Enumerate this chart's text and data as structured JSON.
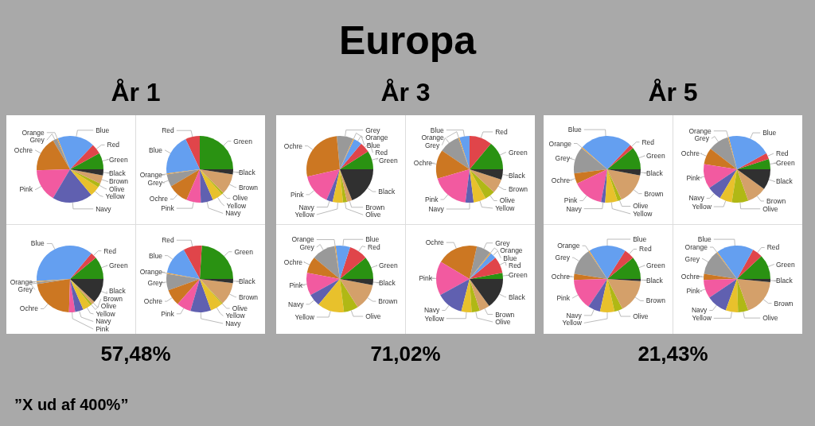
{
  "chart_data": [
    {
      "type": "pie",
      "title": "Europa",
      "subtitle": "År 1",
      "categories": [
        "Green",
        "Red",
        "Blue",
        "Orange",
        "Grey",
        "Ochre",
        "Pink",
        "Navy",
        "Yellow",
        "Olive",
        "Brown",
        "Black"
      ],
      "values": [
        8,
        5,
        18,
        0.5,
        2,
        17,
        16,
        19.5,
        5,
        2,
        4,
        3
      ],
      "colors": [
        "#2a9212",
        "#e0454a",
        "#649ff0",
        "#f0a030",
        "#999999",
        "#cc7722",
        "#f25aa0",
        "#6060b0",
        "#e8c12c",
        "#b0b815",
        "#d4a06a",
        "#303030"
      ]
    },
    {
      "type": "pie",
      "categories": [
        "Green",
        "Red",
        "Blue",
        "Orange",
        "Grey",
        "Ochre",
        "Pink",
        "Navy",
        "Yellow",
        "Olive",
        "Brown",
        "Black"
      ],
      "values": [
        25,
        7,
        20,
        0.5,
        6,
        10,
        7,
        6,
        5,
        1,
        10,
        2.5
      ],
      "colors": [
        "#2a9212",
        "#e0454a",
        "#649ff0",
        "#f0a030",
        "#999999",
        "#cc7722",
        "#f25aa0",
        "#6060b0",
        "#e8c12c",
        "#b0b815",
        "#d4a06a",
        "#303030"
      ]
    },
    {
      "type": "pie",
      "categories": [
        "Green",
        "Red",
        "Blue",
        "Orange",
        "Grey",
        "Ochre",
        "Pink",
        "Navy",
        "Yellow",
        "Olive",
        "Brown",
        "Black"
      ],
      "values": [
        11,
        3,
        37,
        0.5,
        1,
        22,
        3,
        4,
        4,
        1,
        1.5,
        12
      ],
      "colors": [
        "#2a9212",
        "#e0454a",
        "#649ff0",
        "#f0a030",
        "#999999",
        "#cc7722",
        "#f25aa0",
        "#6060b0",
        "#e8c12c",
        "#b0b815",
        "#d4a06a",
        "#303030"
      ]
    },
    {
      "type": "pie",
      "categories": [
        "Green",
        "Red",
        "Blue",
        "Orange",
        "Grey",
        "Ochre",
        "Pink",
        "Navy",
        "Yellow",
        "Olive",
        "Brown",
        "Black"
      ],
      "values": [
        24,
        9,
        14,
        0.5,
        8,
        8,
        7,
        10,
        6,
        0.5,
        11,
        2
      ],
      "colors": [
        "#2a9212",
        "#e0454a",
        "#649ff0",
        "#f0a030",
        "#999999",
        "#cc7722",
        "#f25aa0",
        "#6060b0",
        "#e8c12c",
        "#b0b815",
        "#d4a06a",
        "#303030"
      ],
      "annotations": [
        "57,48%"
      ]
    },
    {
      "type": "pie",
      "subtitle": "År 3",
      "categories": [
        "Green",
        "Red",
        "Blue",
        "Orange",
        "Grey",
        "Ochre",
        "Pink",
        "Navy",
        "Yellow",
        "Olive",
        "Brown",
        "Black"
      ],
      "values": [
        9,
        5,
        4,
        0.5,
        8,
        27,
        15,
        3,
        5,
        2,
        2.5,
        19
      ],
      "colors": [
        "#2a9212",
        "#e0454a",
        "#649ff0",
        "#f0a030",
        "#999999",
        "#cc7722",
        "#f25aa0",
        "#6060b0",
        "#e8c12c",
        "#b0b815",
        "#d4a06a",
        "#303030"
      ]
    },
    {
      "type": "pie",
      "categories": [
        "Green",
        "Red",
        "Blue",
        "Orange",
        "Grey",
        "Ochre",
        "Pink",
        "Navy",
        "Yellow",
        "Olive",
        "Brown",
        "Black"
      ],
      "values": [
        14,
        11,
        5,
        0.5,
        10,
        14,
        18.5,
        4,
        6,
        5,
        7,
        5
      ],
      "colors": [
        "#2a9212",
        "#e0454a",
        "#649ff0",
        "#f0a030",
        "#999999",
        "#cc7722",
        "#f25aa0",
        "#6060b0",
        "#e8c12c",
        "#b0b815",
        "#d4a06a",
        "#303030"
      ]
    },
    {
      "type": "pie",
      "categories": [
        "Green",
        "Red",
        "Blue",
        "Orange",
        "Grey",
        "Ochre",
        "Pink",
        "Navy",
        "Yellow",
        "Olive",
        "Brown",
        "Black"
      ],
      "values": [
        11,
        9,
        7,
        0.5,
        11.5,
        8,
        11,
        6,
        13,
        7,
        13,
        3
      ],
      "colors": [
        "#2a9212",
        "#e0454a",
        "#649ff0",
        "#f0a030",
        "#999999",
        "#cc7722",
        "#f25aa0",
        "#6060b0",
        "#e8c12c",
        "#b0b815",
        "#d4a06a",
        "#303030"
      ]
    },
    {
      "type": "pie",
      "categories": [
        "Green",
        "Red",
        "Blue",
        "Orange",
        "Grey",
        "Ochre",
        "Pink",
        "Navy",
        "Yellow",
        "Olive",
        "Brown",
        "Black"
      ],
      "values": [
        3,
        8,
        3,
        0.5,
        7,
        20,
        16.5,
        13,
        5,
        4,
        5,
        15
      ],
      "colors": [
        "#2a9212",
        "#e0454a",
        "#649ff0",
        "#f0a030",
        "#999999",
        "#cc7722",
        "#f25aa0",
        "#6060b0",
        "#e8c12c",
        "#b0b815",
        "#d4a06a",
        "#303030"
      ],
      "annotations": [
        "71,02%"
      ]
    },
    {
      "type": "pie",
      "subtitle": "År 5",
      "categories": [
        "Green",
        "Red",
        "Blue",
        "Orange",
        "Grey",
        "Ochre",
        "Pink",
        "Navy",
        "Yellow",
        "Olive",
        "Brown",
        "Black"
      ],
      "values": [
        11,
        2,
        25.5,
        0.5,
        13,
        5,
        15,
        2,
        6,
        2,
        15,
        3
      ],
      "colors": [
        "#2a9212",
        "#e0454a",
        "#649ff0",
        "#f0a030",
        "#999999",
        "#cc7722",
        "#f25aa0",
        "#6060b0",
        "#e8c12c",
        "#b0b815",
        "#d4a06a",
        "#303030"
      ]
    },
    {
      "type": "pie",
      "categories": [
        "Green",
        "Red",
        "Blue",
        "Orange",
        "Grey",
        "Ochre",
        "Pink",
        "Navy",
        "Yellow",
        "Olive",
        "Brown",
        "Black"
      ],
      "values": [
        5,
        3,
        21,
        0.5,
        10,
        8,
        12,
        7,
        6,
        8,
        9.5,
        10
      ],
      "colors": [
        "#2a9212",
        "#e0454a",
        "#649ff0",
        "#f0a030",
        "#999999",
        "#cc7722",
        "#f25aa0",
        "#6060b0",
        "#e8c12c",
        "#b0b815",
        "#d4a06a",
        "#303030"
      ]
    },
    {
      "type": "pie",
      "categories": [
        "Green",
        "Red",
        "Blue",
        "Orange",
        "Grey",
        "Ochre",
        "Pink",
        "Navy",
        "Yellow",
        "Olive",
        "Brown",
        "Black"
      ],
      "values": [
        11,
        5,
        18,
        0.5,
        13,
        3,
        15,
        6,
        7,
        4,
        16.5,
        1
      ],
      "colors": [
        "#2a9212",
        "#e0454a",
        "#649ff0",
        "#f0a030",
        "#999999",
        "#cc7722",
        "#f25aa0",
        "#6060b0",
        "#e8c12c",
        "#b0b815",
        "#d4a06a",
        "#303030"
      ]
    },
    {
      "type": "pie",
      "categories": [
        "Green",
        "Red",
        "Blue",
        "Orange",
        "Grey",
        "Ochre",
        "Pink",
        "Navy",
        "Yellow",
        "Olive",
        "Brown",
        "Black"
      ],
      "values": [
        12,
        5,
        18,
        0.5,
        12,
        3,
        9,
        10,
        6,
        5,
        18,
        1.5
      ],
      "colors": [
        "#2a9212",
        "#e0454a",
        "#649ff0",
        "#f0a030",
        "#999999",
        "#cc7722",
        "#f25aa0",
        "#6060b0",
        "#e8c12c",
        "#b0b815",
        "#d4a06a",
        "#303030"
      ],
      "annotations": [
        "21,43%",
        "”X ud af 400%”"
      ]
    }
  ]
}
